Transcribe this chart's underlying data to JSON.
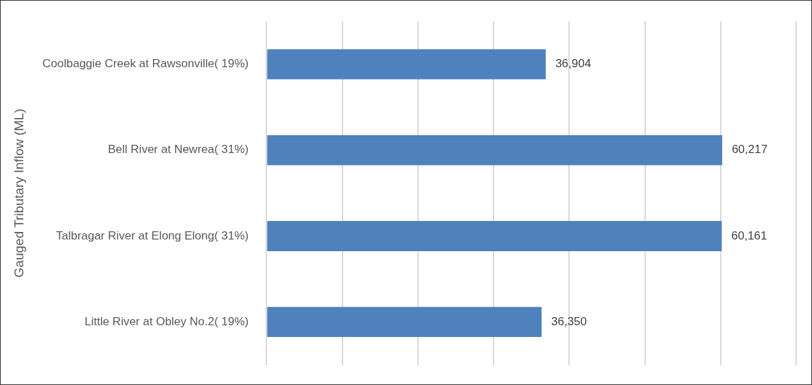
{
  "chart_data": {
    "type": "bar",
    "orientation": "horizontal",
    "ylabel": "Gauged Tributary Inflow (ML)",
    "categories": [
      "Coolbaggie Creek at Rawsonville( 19%)",
      "Bell River at Newrea( 31%)",
      "Talbragar River at Elong Elong( 31%)",
      "Little River at Obley No.2( 19%)"
    ],
    "values": [
      36904,
      60217,
      60161,
      36350
    ],
    "color": "#4f81bd",
    "value_labels": [
      "36,904",
      "60,217",
      "60,161",
      "36,350"
    ],
    "grid": "x",
    "tick_labels": "y",
    "legend": false
  }
}
